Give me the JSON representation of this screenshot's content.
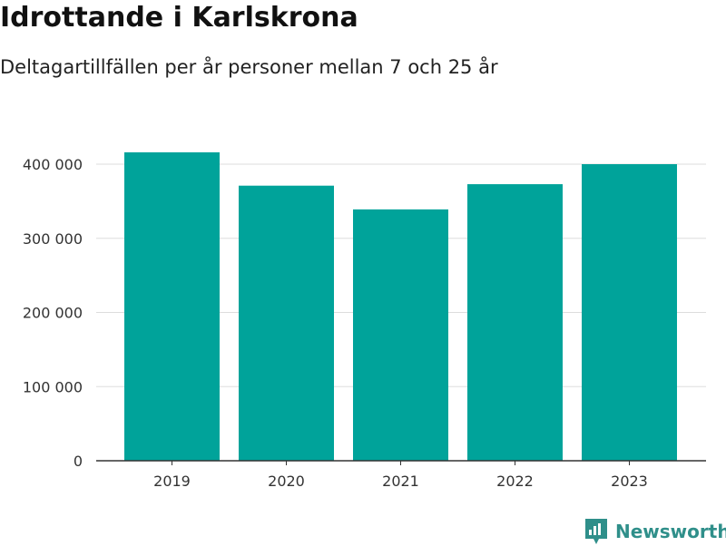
{
  "chart_data": {
    "type": "bar",
    "title": "Idrottande i Karlskrona",
    "subtitle": "Deltagartillfällen per år personer mellan 7 och 25 år",
    "categories": [
      "2019",
      "2020",
      "2021",
      "2022",
      "2023"
    ],
    "values": [
      416000,
      371000,
      339000,
      373000,
      400000
    ],
    "ylim": [
      0,
      400000
    ],
    "yticks": [
      {
        "value": 0,
        "label": "0"
      },
      {
        "value": 100000,
        "label": "100 000"
      },
      {
        "value": 200000,
        "label": "200 000"
      },
      {
        "value": 300000,
        "label": "300 000"
      },
      {
        "value": 400000,
        "label": "400 000"
      }
    ],
    "grid": true,
    "bar_color": "#00a39a"
  },
  "brand": {
    "name": "Newsworthy",
    "color": "#2f8f8a",
    "icon": "newsworthy-logo-icon"
  }
}
